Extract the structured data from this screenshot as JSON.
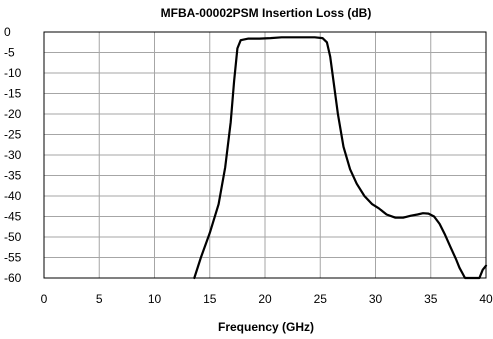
{
  "chart_data": {
    "type": "line",
    "title": "MFBA-00002PSM Insertion Loss (dB)",
    "xlabel": "Frequency  (GHz)",
    "ylabel": "",
    "xlim": [
      0,
      40
    ],
    "ylim": [
      -60,
      0
    ],
    "x_ticks": [
      0,
      5,
      10,
      15,
      20,
      25,
      30,
      35,
      40
    ],
    "y_ticks": [
      0,
      -5,
      -10,
      -15,
      -20,
      -25,
      -30,
      -35,
      -40,
      -45,
      -50,
      -55,
      -60
    ],
    "x_tick_labels": [
      "0",
      "5",
      "10",
      "15",
      "20",
      "25",
      "30",
      "35",
      "40"
    ],
    "y_tick_labels": [
      "0",
      "-5",
      "-10",
      "-15",
      "-20",
      "-25",
      "-30",
      "-35",
      "-40",
      "-45",
      "-50",
      "-55",
      "-60"
    ],
    "grid": true,
    "legend": "none",
    "series": [
      {
        "color": "#000000",
        "x": [
          13.6,
          14.2,
          15.0,
          15.8,
          16.4,
          16.9,
          17.2,
          17.5,
          17.8,
          18.5,
          19.5,
          20.5,
          21.5,
          22.5,
          23.5,
          24.5,
          25.2,
          25.6,
          25.9,
          26.2,
          26.6,
          27.1,
          27.7,
          28.3,
          29.0,
          29.7,
          30.3,
          31.0,
          31.8,
          32.5,
          33.2,
          33.8,
          34.3,
          34.8,
          35.3,
          35.8,
          36.3,
          36.8,
          37.3,
          37.6,
          37.9,
          38.1,
          38.3,
          38.6,
          39.0,
          39.4,
          39.7,
          40.0
        ],
        "y": [
          -60.0,
          -55.0,
          -49.0,
          -42.0,
          -33.0,
          -22.0,
          -12.0,
          -4.0,
          -2.0,
          -1.6,
          -1.6,
          -1.5,
          -1.3,
          -1.3,
          -1.3,
          -1.3,
          -1.5,
          -2.5,
          -6.0,
          -12.0,
          -20.0,
          -28.0,
          -33.5,
          -37.0,
          -40.0,
          -42.0,
          -43.0,
          -44.5,
          -45.3,
          -45.3,
          -44.8,
          -44.5,
          -44.2,
          -44.3,
          -45.0,
          -46.8,
          -49.5,
          -52.5,
          -55.5,
          -57.5,
          -59.0,
          -60.0,
          -60.0,
          -60.0,
          -60.0,
          -60.0,
          -58.0,
          -57.0
        ]
      }
    ]
  }
}
